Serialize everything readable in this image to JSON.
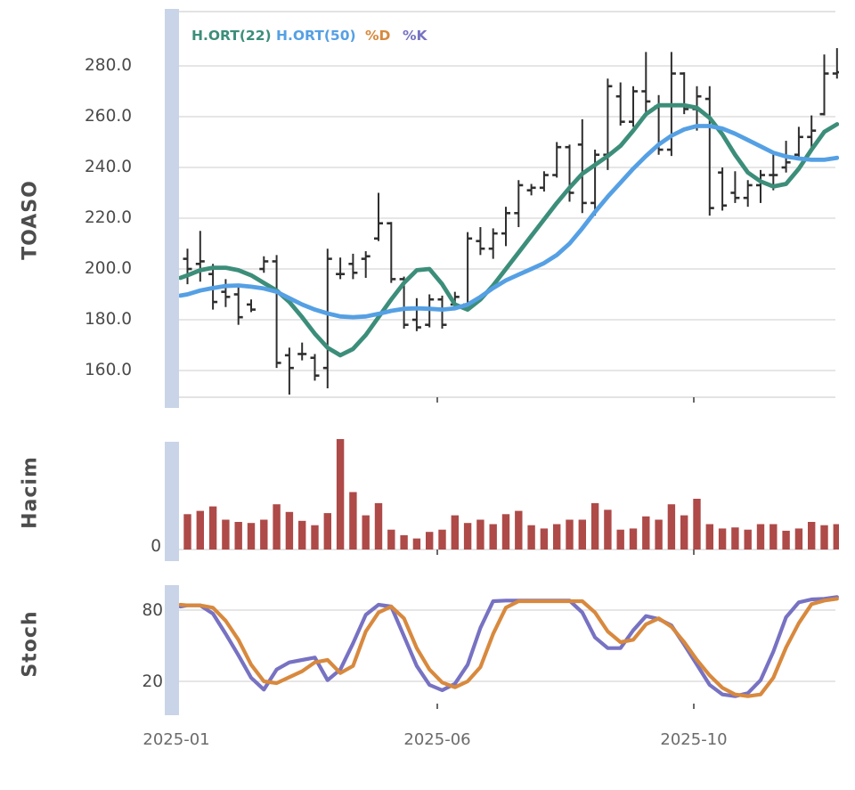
{
  "colors": {
    "ma22": "#3C8E7A",
    "ma50": "#55A0E4",
    "pct_d": "#D8893E",
    "pct_k": "#7772C2",
    "volume": "#AE4A48",
    "ohlc": "#2E2E2E",
    "band": "#C9D4E8",
    "grid": "#D8D8D8",
    "border": "#D2D2D2",
    "axis_tick": "#444444",
    "tick_text": "#4A4A4A"
  },
  "panels": {
    "price_label": "TOASO",
    "volume_label": "Hacim",
    "stoch_label": "Stoch"
  },
  "legend": {
    "items": [
      {
        "label": "H.ORT(22)",
        "color_key": "ma22"
      },
      {
        "label": "H.ORT(50)",
        "color_key": "ma50"
      },
      {
        "label": "%D",
        "color_key": "pct_d"
      },
      {
        "label": "%K",
        "color_key": "pct_k"
      }
    ]
  },
  "axes": {
    "price_ticks": [
      "280.0",
      "260.0",
      "240.0",
      "220.0",
      "200.0",
      "180.0",
      "160.0"
    ],
    "volume_ticks": [
      "0"
    ],
    "stoch_ticks": [
      "80",
      "20"
    ],
    "x_ticks": [
      "2025-01",
      "2025-06",
      "2025-10"
    ]
  },
  "chart_data": [
    {
      "panel": "price",
      "type": "ohlc",
      "label": "TOASO",
      "timeframe": "weekly",
      "ylim": [
        149,
        302
      ],
      "yticks": [
        160,
        180,
        200,
        220,
        240,
        260,
        280
      ],
      "x_tick_labels": [
        "2025-01",
        "2025-06",
        "2025-10"
      ],
      "x_tick_bar_index": [
        -0.85,
        19.6,
        39.75
      ],
      "bars_ohlc": [
        [
          204,
          208,
          194,
          200
        ],
        [
          202,
          215,
          195,
          203
        ],
        [
          198,
          202,
          184,
          187
        ],
        [
          191,
          196,
          185,
          189
        ],
        [
          190,
          193,
          178,
          181
        ],
        [
          186,
          188,
          183,
          184
        ],
        [
          200,
          205,
          198.5,
          203
        ],
        [
          203,
          205.5,
          161,
          163
        ],
        [
          166,
          169,
          150.5,
          161
        ],
        [
          166.5,
          171,
          164,
          166.5
        ],
        [
          165,
          166.5,
          156,
          158
        ],
        [
          161,
          208,
          153,
          204
        ],
        [
          198,
          204.5,
          196,
          198
        ],
        [
          202,
          206,
          196,
          198.5
        ],
        [
          204,
          207,
          196.5,
          205
        ],
        [
          212,
          230,
          211,
          218
        ],
        [
          218,
          218.5,
          194.5,
          196
        ],
        [
          196,
          197,
          176.5,
          178
        ],
        [
          180,
          188.5,
          175.5,
          177
        ],
        [
          178,
          190,
          177,
          188
        ],
        [
          188,
          189.5,
          176.5,
          178
        ],
        [
          186,
          191,
          184,
          189
        ],
        [
          186,
          214.5,
          185,
          212
        ],
        [
          211,
          216.5,
          205.5,
          208
        ],
        [
          208,
          216,
          204,
          214
        ],
        [
          214,
          224.5,
          209,
          222
        ],
        [
          222,
          235,
          216.5,
          233
        ],
        [
          231,
          233.5,
          229,
          232
        ],
        [
          232,
          238.5,
          230.5,
          237
        ],
        [
          237,
          250,
          236,
          248
        ],
        [
          248,
          249,
          226.5,
          230
        ],
        [
          249,
          259,
          222,
          226
        ],
        [
          226,
          247,
          221,
          245
        ],
        [
          245,
          275,
          239,
          272
        ],
        [
          268,
          273.5,
          256.5,
          258
        ],
        [
          258,
          272,
          256,
          270
        ],
        [
          270,
          285.5,
          261,
          266
        ],
        [
          264,
          268.5,
          245,
          247
        ],
        [
          247,
          285.5,
          244.5,
          277
        ],
        [
          277,
          277.5,
          261,
          263
        ],
        [
          263,
          272,
          254.5,
          268
        ],
        [
          267,
          272,
          221,
          224
        ],
        [
          238,
          240,
          223,
          225
        ],
        [
          230,
          238.5,
          226,
          228
        ],
        [
          228,
          235,
          224.5,
          233
        ],
        [
          233,
          239,
          226,
          237
        ],
        [
          237,
          246,
          231,
          237
        ],
        [
          240,
          250.5,
          238,
          242
        ],
        [
          245,
          256,
          244,
          252
        ],
        [
          252,
          260.5,
          247.5,
          254.5
        ],
        [
          261,
          284.5,
          260.5,
          277
        ],
        [
          277,
          287,
          275,
          277.5
        ]
      ],
      "series": [
        {
          "name": "H.ORT(22)",
          "color_key": "ma22",
          "edge": 196.5,
          "values": [
            197.5,
            199.5,
            200.5,
            200.5,
            199.5,
            197.5,
            194.5,
            191.5,
            187,
            181,
            174.5,
            169,
            166,
            168.5,
            174,
            181,
            188,
            194.5,
            199.5,
            200,
            194,
            186,
            184,
            188,
            193.5,
            200,
            206.5,
            213,
            219.5,
            226,
            232,
            237.5,
            241,
            244.5,
            248.5,
            254.5,
            261,
            264.5,
            264.5,
            264.5,
            263.5,
            259.5,
            253,
            245,
            238,
            234.5,
            232.5,
            233.5,
            239.5,
            247,
            254,
            257
          ]
        },
        {
          "name": "H.ORT(50)",
          "color_key": "ma50",
          "edge": 189.5,
          "values": [
            190,
            191.5,
            192.5,
            193.3,
            193.5,
            193,
            192.3,
            191,
            188.5,
            186,
            184,
            182.5,
            181.3,
            181,
            181.3,
            182.3,
            183.5,
            184.3,
            184.5,
            184.3,
            184,
            184.5,
            186,
            189,
            192.5,
            195.5,
            197.8,
            200,
            202.3,
            205.5,
            210,
            216,
            222.5,
            228.5,
            234,
            239.5,
            244.5,
            249,
            252.5,
            255,
            256.3,
            256.3,
            255.3,
            253.3,
            250.8,
            248.3,
            245.8,
            244.3,
            243.5,
            243,
            243,
            243.8
          ]
        }
      ]
    },
    {
      "panel": "volume",
      "type": "bar",
      "label": "Hacim",
      "yticks": [
        0
      ],
      "unit": "relative, max bar = 100",
      "values": [
        32,
        35,
        39,
        27,
        25,
        24,
        27,
        41,
        34,
        26,
        22,
        33,
        100,
        52,
        31,
        42,
        18,
        13,
        10,
        16,
        18,
        31,
        24,
        27,
        23,
        32,
        35,
        22,
        19,
        23,
        27,
        27,
        42,
        36,
        18,
        19,
        30,
        27,
        41,
        31,
        46,
        23,
        19,
        20,
        18,
        23,
        23,
        17,
        19,
        25,
        22,
        23
      ]
    },
    {
      "panel": "stoch",
      "type": "line",
      "label": "Stoch",
      "ylim": [
        0,
        100
      ],
      "yticks": [
        20,
        80
      ],
      "series": [
        {
          "name": "%K",
          "color_key": "pct_k",
          "edge": 83,
          "values": [
            84,
            84,
            77,
            60,
            42,
            23,
            13,
            30,
            36,
            38,
            40,
            21,
            30,
            52,
            76,
            84.5,
            83,
            58,
            33,
            17,
            12.5,
            18,
            34,
            65,
            87.5,
            88,
            88,
            88,
            88,
            88,
            88,
            78,
            57,
            48,
            48,
            63,
            75,
            72.5,
            67,
            51,
            34,
            17,
            9,
            7.5,
            10,
            21,
            45,
            74,
            86.5,
            89,
            89.5,
            91
          ]
        },
        {
          "name": "%D",
          "color_key": "pct_d",
          "edge": 84.5,
          "values": [
            84,
            84,
            82,
            71,
            55,
            34,
            20,
            18.5,
            23.5,
            28.5,
            36,
            38,
            27,
            33,
            62,
            78,
            83,
            73,
            48,
            30,
            19,
            15,
            20,
            32,
            60,
            82,
            87.5,
            87.5,
            87.5,
            87.5,
            87.5,
            87.5,
            78,
            62,
            53,
            55,
            68,
            73,
            66,
            53,
            38,
            25,
            14.5,
            9,
            7.5,
            9,
            23,
            48.5,
            69,
            85,
            88,
            89.5
          ]
        }
      ]
    }
  ]
}
